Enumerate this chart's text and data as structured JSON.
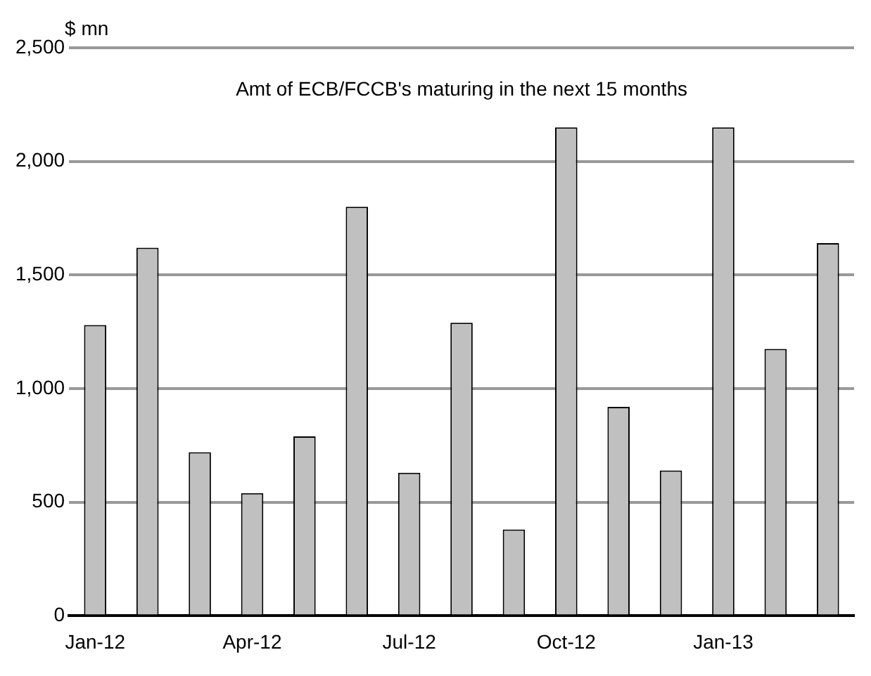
{
  "chart_data": {
    "type": "bar",
    "title": "Amt of ECB/FCCB's maturing in the next 15 months",
    "ylabel": "$ mn",
    "categories": [
      "Jan-12",
      null,
      null,
      "Apr-12",
      null,
      null,
      "Jul-12",
      null,
      null,
      "Oct-12",
      null,
      null,
      "Jan-13",
      null,
      null
    ],
    "values": [
      1280,
      1620,
      720,
      540,
      790,
      1800,
      630,
      1290,
      380,
      2150,
      920,
      640,
      2150,
      1175,
      1640
    ],
    "color": "#c0c0c0",
    "ylim": [
      0,
      2500
    ],
    "yticks": [
      {
        "value": 0,
        "label": "0"
      },
      {
        "value": 500,
        "label": "500"
      },
      {
        "value": 1000,
        "label": "1,000"
      },
      {
        "value": 1500,
        "label": "1,500"
      },
      {
        "value": 2000,
        "label": "2,000"
      },
      {
        "value": 2500,
        "label": "2,500"
      }
    ],
    "grid": "y",
    "legend": false
  }
}
